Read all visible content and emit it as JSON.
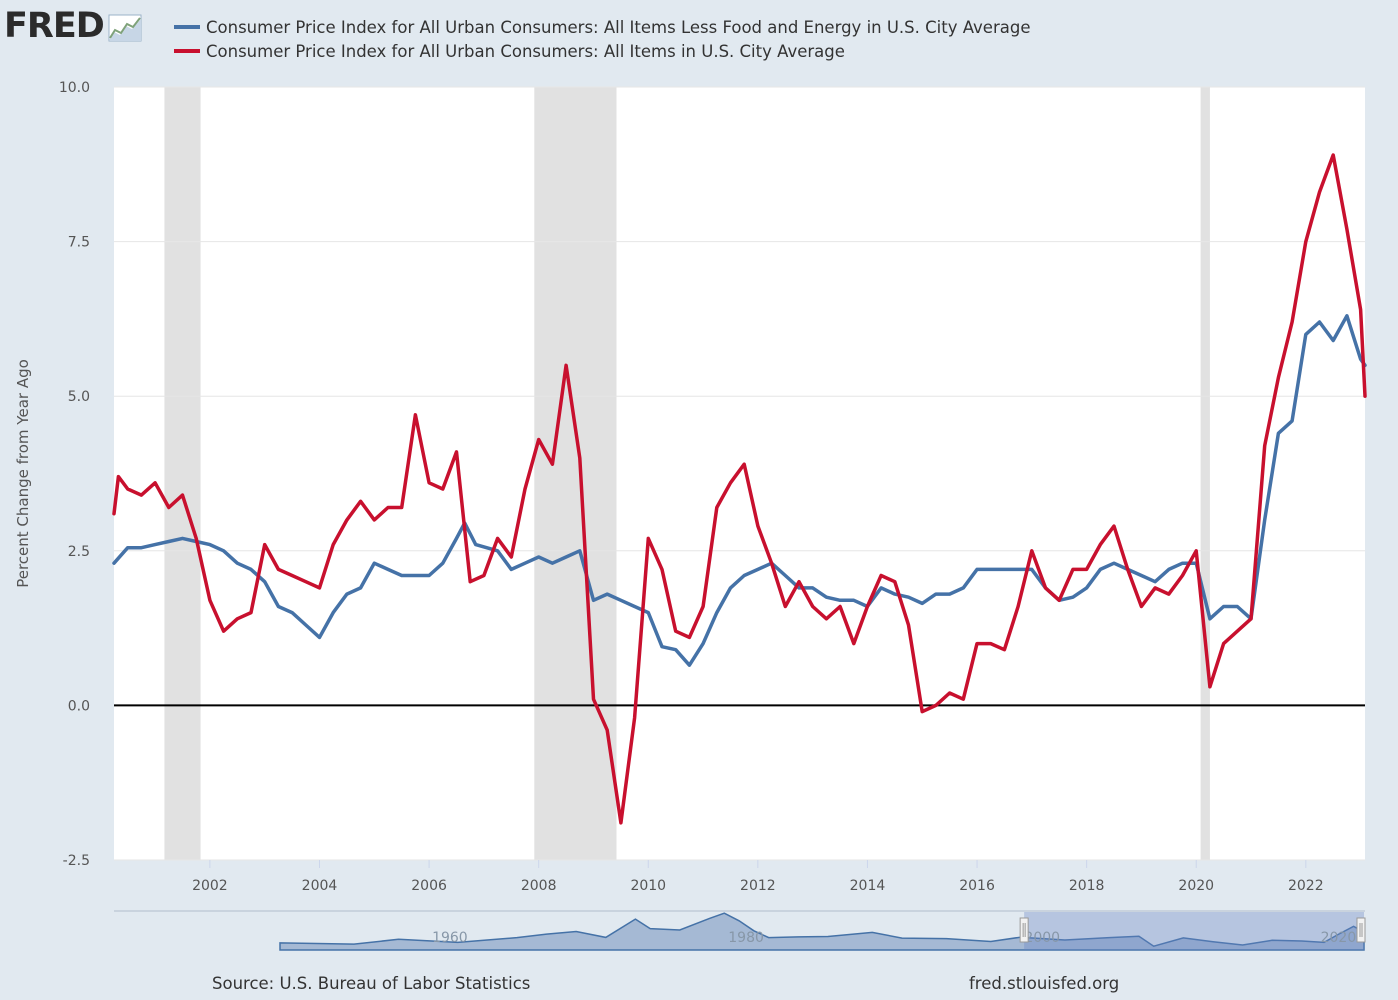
{
  "brand": {
    "logo_text": "FRED",
    "logo_icon": "line-graph-icon"
  },
  "colors": {
    "core": "#4572a7",
    "all": "#c8102e",
    "background": "#e1e9f0",
    "recession": "#e1e1e1"
  },
  "legend": [
    {
      "label": "Consumer Price Index for All Urban Consumers: All Items Less Food and Energy in U.S. City Average",
      "color": "#4572a7"
    },
    {
      "label": "Consumer Price Index for All Urban Consumers: All Items in U.S. City Average",
      "color": "#c8102e"
    }
  ],
  "footer": {
    "source": "Source: U.S. Bureau of Labor Statistics",
    "site": "fred.stlouisfed.org"
  },
  "navigator": {
    "tick_labels": [
      "1960",
      "1980",
      "2000",
      "2020"
    ]
  },
  "chart_data": {
    "type": "line",
    "title": "",
    "xlabel": "",
    "ylabel": "Percent Change from Year Ago",
    "xlim": [
      2000.25,
      2023.08
    ],
    "ylim": [
      -2.5,
      10.0
    ],
    "y_ticks": [
      "10.0",
      "7.5",
      "5.0",
      "2.5",
      "0.0",
      "-2.5"
    ],
    "x_ticks": [
      "2002",
      "2004",
      "2006",
      "2008",
      "2010",
      "2012",
      "2014",
      "2016",
      "2018",
      "2020",
      "2022"
    ],
    "grid": true,
    "zero_line": true,
    "legend_position": "top",
    "recessions": [
      [
        2001.17,
        2001.83
      ],
      [
        2007.92,
        2009.42
      ],
      [
        2020.08,
        2020.25
      ]
    ],
    "series": [
      {
        "name": "Consumer Price Index for All Urban Consumers: All Items Less Food and Energy in U.S. City Average",
        "points": [
          [
            2000.25,
            2.3
          ],
          [
            2000.5,
            2.55
          ],
          [
            2000.75,
            2.55
          ],
          [
            2001.0,
            2.6
          ],
          [
            2001.25,
            2.65
          ],
          [
            2001.5,
            2.7
          ],
          [
            2001.75,
            2.65
          ],
          [
            2002.0,
            2.6
          ],
          [
            2002.25,
            2.5
          ],
          [
            2002.5,
            2.3
          ],
          [
            2002.75,
            2.2
          ],
          [
            2003.0,
            2.0
          ],
          [
            2003.25,
            1.6
          ],
          [
            2003.5,
            1.5
          ],
          [
            2003.75,
            1.3
          ],
          [
            2004.0,
            1.1
          ],
          [
            2004.25,
            1.5
          ],
          [
            2004.5,
            1.8
          ],
          [
            2004.75,
            1.9
          ],
          [
            2005.0,
            2.3
          ],
          [
            2005.25,
            2.2
          ],
          [
            2005.5,
            2.1
          ],
          [
            2005.75,
            2.1
          ],
          [
            2006.0,
            2.1
          ],
          [
            2006.25,
            2.3
          ],
          [
            2006.5,
            2.7
          ],
          [
            2006.65,
            2.95
          ],
          [
            2006.85,
            2.6
          ],
          [
            2007.25,
            2.5
          ],
          [
            2007.5,
            2.2
          ],
          [
            2007.75,
            2.3
          ],
          [
            2008.0,
            2.4
          ],
          [
            2008.25,
            2.3
          ],
          [
            2008.5,
            2.4
          ],
          [
            2008.75,
            2.5
          ],
          [
            2009.0,
            1.7
          ],
          [
            2009.25,
            1.8
          ],
          [
            2009.5,
            1.7
          ],
          [
            2009.75,
            1.6
          ],
          [
            2010.0,
            1.5
          ],
          [
            2010.25,
            0.95
          ],
          [
            2010.5,
            0.9
          ],
          [
            2010.75,
            0.65
          ],
          [
            2011.0,
            1.0
          ],
          [
            2011.25,
            1.5
          ],
          [
            2011.5,
            1.9
          ],
          [
            2011.75,
            2.1
          ],
          [
            2012.0,
            2.2
          ],
          [
            2012.25,
            2.3
          ],
          [
            2012.5,
            2.1
          ],
          [
            2012.75,
            1.9
          ],
          [
            2013.0,
            1.9
          ],
          [
            2013.25,
            1.75
          ],
          [
            2013.5,
            1.7
          ],
          [
            2013.75,
            1.7
          ],
          [
            2014.0,
            1.6
          ],
          [
            2014.25,
            1.9
          ],
          [
            2014.5,
            1.8
          ],
          [
            2014.75,
            1.75
          ],
          [
            2015.0,
            1.65
          ],
          [
            2015.25,
            1.8
          ],
          [
            2015.5,
            1.8
          ],
          [
            2015.75,
            1.9
          ],
          [
            2016.0,
            2.2
          ],
          [
            2016.25,
            2.2
          ],
          [
            2016.5,
            2.2
          ],
          [
            2016.75,
            2.2
          ],
          [
            2017.0,
            2.2
          ],
          [
            2017.25,
            1.9
          ],
          [
            2017.5,
            1.7
          ],
          [
            2017.75,
            1.75
          ],
          [
            2018.0,
            1.9
          ],
          [
            2018.25,
            2.2
          ],
          [
            2018.5,
            2.3
          ],
          [
            2018.75,
            2.2
          ],
          [
            2019.0,
            2.1
          ],
          [
            2019.25,
            2.0
          ],
          [
            2019.5,
            2.2
          ],
          [
            2019.75,
            2.3
          ],
          [
            2020.0,
            2.3
          ],
          [
            2020.25,
            1.4
          ],
          [
            2020.5,
            1.6
          ],
          [
            2020.75,
            1.6
          ],
          [
            2021.0,
            1.4
          ],
          [
            2021.25,
            3.0
          ],
          [
            2021.5,
            4.4
          ],
          [
            2021.75,
            4.6
          ],
          [
            2022.0,
            6.0
          ],
          [
            2022.25,
            6.2
          ],
          [
            2022.5,
            5.9
          ],
          [
            2022.75,
            6.3
          ],
          [
            2023.0,
            5.6
          ],
          [
            2023.08,
            5.5
          ]
        ]
      },
      {
        "name": "Consumer Price Index for All Urban Consumers: All Items in U.S. City Average",
        "points": [
          [
            2000.25,
            3.1
          ],
          [
            2000.33,
            3.7
          ],
          [
            2000.5,
            3.5
          ],
          [
            2000.75,
            3.4
          ],
          [
            2001.0,
            3.6
          ],
          [
            2001.25,
            3.2
          ],
          [
            2001.5,
            3.4
          ],
          [
            2001.75,
            2.7
          ],
          [
            2002.0,
            1.7
          ],
          [
            2002.25,
            1.2
          ],
          [
            2002.5,
            1.4
          ],
          [
            2002.75,
            1.5
          ],
          [
            2003.0,
            2.6
          ],
          [
            2003.25,
            2.2
          ],
          [
            2003.5,
            2.1
          ],
          [
            2003.75,
            2.0
          ],
          [
            2004.0,
            1.9
          ],
          [
            2004.25,
            2.6
          ],
          [
            2004.5,
            3.0
          ],
          [
            2004.75,
            3.3
          ],
          [
            2005.0,
            3.0
          ],
          [
            2005.25,
            3.2
          ],
          [
            2005.5,
            3.2
          ],
          [
            2005.75,
            4.7
          ],
          [
            2006.0,
            3.6
          ],
          [
            2006.25,
            3.5
          ],
          [
            2006.5,
            4.1
          ],
          [
            2006.75,
            2.0
          ],
          [
            2007.0,
            2.1
          ],
          [
            2007.25,
            2.7
          ],
          [
            2007.5,
            2.4
          ],
          [
            2007.75,
            3.5
          ],
          [
            2008.0,
            4.3
          ],
          [
            2008.25,
            3.9
          ],
          [
            2008.5,
            5.5
          ],
          [
            2008.75,
            4.0
          ],
          [
            2009.0,
            0.1
          ],
          [
            2009.25,
            -0.4
          ],
          [
            2009.5,
            -1.9
          ],
          [
            2009.75,
            -0.2
          ],
          [
            2010.0,
            2.7
          ],
          [
            2010.25,
            2.2
          ],
          [
            2010.5,
            1.2
          ],
          [
            2010.75,
            1.1
          ],
          [
            2011.0,
            1.6
          ],
          [
            2011.25,
            3.2
          ],
          [
            2011.5,
            3.6
          ],
          [
            2011.75,
            3.9
          ],
          [
            2012.0,
            2.9
          ],
          [
            2012.25,
            2.3
          ],
          [
            2012.5,
            1.6
          ],
          [
            2012.75,
            2.0
          ],
          [
            2013.0,
            1.6
          ],
          [
            2013.25,
            1.4
          ],
          [
            2013.5,
            1.6
          ],
          [
            2013.75,
            1.0
          ],
          [
            2014.0,
            1.6
          ],
          [
            2014.25,
            2.1
          ],
          [
            2014.5,
            2.0
          ],
          [
            2014.75,
            1.3
          ],
          [
            2015.0,
            -0.1
          ],
          [
            2015.25,
            0.0
          ],
          [
            2015.5,
            0.2
          ],
          [
            2015.75,
            0.1
          ],
          [
            2016.0,
            1.0
          ],
          [
            2016.25,
            1.0
          ],
          [
            2016.5,
            0.9
          ],
          [
            2016.75,
            1.6
          ],
          [
            2017.0,
            2.5
          ],
          [
            2017.25,
            1.9
          ],
          [
            2017.5,
            1.7
          ],
          [
            2017.75,
            2.2
          ],
          [
            2018.0,
            2.2
          ],
          [
            2018.25,
            2.6
          ],
          [
            2018.5,
            2.9
          ],
          [
            2018.75,
            2.2
          ],
          [
            2019.0,
            1.6
          ],
          [
            2019.25,
            1.9
          ],
          [
            2019.5,
            1.8
          ],
          [
            2019.75,
            2.1
          ],
          [
            2020.0,
            2.5
          ],
          [
            2020.25,
            0.3
          ],
          [
            2020.5,
            1.0
          ],
          [
            2020.75,
            1.2
          ],
          [
            2021.0,
            1.4
          ],
          [
            2021.25,
            4.2
          ],
          [
            2021.5,
            5.3
          ],
          [
            2021.75,
            6.2
          ],
          [
            2022.0,
            7.5
          ],
          [
            2022.25,
            8.3
          ],
          [
            2022.5,
            8.9
          ],
          [
            2022.75,
            7.7
          ],
          [
            2023.0,
            6.4
          ],
          [
            2023.08,
            5.0
          ]
        ]
      }
    ]
  }
}
